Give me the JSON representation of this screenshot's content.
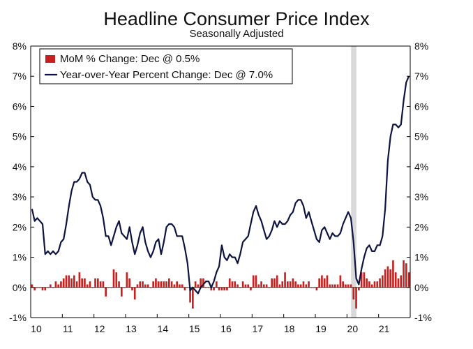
{
  "colors": {
    "bar": "#c8201e",
    "line": "#0d1440",
    "recession": "#d9d9d9",
    "axis": "#000000"
  },
  "chart_data": {
    "type": "bar+line",
    "title": "Headline Consumer Price Index",
    "subtitle": "Seasonally Adjusted",
    "xlabel": "",
    "ylabel": "",
    "ylim": [
      -1,
      8
    ],
    "y_ticks": [
      -1,
      0,
      1,
      2,
      3,
      4,
      5,
      6,
      7,
      8
    ],
    "y_tick_labels_left": [
      "-1%",
      "0%",
      "1%",
      "2%",
      "3%",
      "4%",
      "5%",
      "6%",
      "7%",
      "8%"
    ],
    "y_tick_labels_right": [
      "-1%",
      "0%",
      "1%",
      "2%",
      "3%",
      "4%",
      "5%",
      "6%",
      "7%",
      "8%"
    ],
    "x_range": [
      2010,
      2022
    ],
    "x_ticks": [
      2010,
      2011,
      2012,
      2013,
      2014,
      2015,
      2016,
      2017,
      2018,
      2019,
      2020,
      2021
    ],
    "x_tick_labels": [
      "10",
      "11",
      "12",
      "13",
      "14",
      "15",
      "16",
      "17",
      "18",
      "19",
      "20",
      "21"
    ],
    "recession": {
      "start": 2020.13,
      "end": 2020.3
    },
    "legend": {
      "position": "top-left",
      "entries": [
        {
          "key": "mom",
          "label": "MoM % Change: Dec @ 0.5%"
        },
        {
          "key": "yoy",
          "label": "Year-over-Year Percent Change: Dec @ 7.0%"
        }
      ]
    },
    "series": [
      {
        "name": "MoM % Change",
        "type": "bar",
        "start": "2010-01",
        "values": [
          0.1,
          -0.1,
          0.0,
          0.0,
          -0.1,
          -0.1,
          0.0,
          0.1,
          0.0,
          0.2,
          0.1,
          0.2,
          0.3,
          0.4,
          0.4,
          0.3,
          0.4,
          0.2,
          0.5,
          0.3,
          0.3,
          0.1,
          0.2,
          0.0,
          0.3,
          0.3,
          0.2,
          0.2,
          -0.3,
          0.0,
          0.0,
          0.6,
          0.5,
          0.2,
          -0.3,
          0.0,
          0.5,
          0.3,
          -0.1,
          -0.4,
          0.1,
          0.2,
          0.2,
          0.1,
          0.1,
          0.0,
          0.2,
          0.3,
          0.2,
          0.2,
          0.2,
          0.2,
          0.3,
          0.2,
          0.1,
          0.2,
          0.1,
          0.1,
          -0.1,
          0.0,
          -0.5,
          -0.7,
          0.2,
          0.1,
          0.3,
          0.3,
          0.0,
          0.0,
          -0.1,
          -0.1,
          0.2,
          -0.1,
          -0.1,
          -0.1,
          -0.1,
          0.3,
          0.2,
          0.2,
          0.1,
          0.0,
          0.2,
          0.1,
          0.1,
          -0.1,
          0.4,
          0.4,
          0.1,
          0.2,
          0.1,
          0.1,
          0.0,
          0.3,
          0.3,
          0.4,
          0.1,
          0.2,
          0.5,
          0.2,
          0.2,
          0.3,
          0.2,
          0.1,
          0.1,
          0.2,
          0.1,
          0.2,
          0.0,
          0.0,
          -0.1,
          0.3,
          0.4,
          0.3,
          0.4,
          0.1,
          0.1,
          0.1,
          0.1,
          0.4,
          0.2,
          0.1,
          0.1,
          0.1,
          -0.4,
          -0.7,
          -0.1,
          0.5,
          0.5,
          0.3,
          0.2,
          0.1,
          0.2,
          0.2,
          0.3,
          0.4,
          0.6,
          0.7,
          0.6,
          0.9,
          0.5,
          0.3,
          0.4,
          0.9,
          0.8,
          0.5
        ]
      },
      {
        "name": "Year-over-Year Percent Change",
        "type": "line",
        "start": "2010-01",
        "values": [
          2.6,
          2.2,
          2.3,
          2.2,
          2.1,
          1.1,
          1.2,
          1.1,
          1.2,
          1.1,
          1.2,
          1.5,
          1.6,
          2.1,
          2.7,
          3.2,
          3.5,
          3.5,
          3.6,
          3.8,
          3.8,
          3.5,
          3.4,
          3.0,
          2.9,
          2.9,
          2.7,
          2.3,
          1.7,
          1.7,
          1.4,
          1.7,
          2.0,
          2.2,
          1.8,
          1.7,
          1.6,
          2.0,
          1.5,
          1.1,
          1.4,
          1.8,
          2.0,
          1.5,
          1.2,
          1.0,
          1.2,
          1.5,
          1.6,
          1.1,
          1.5,
          2.0,
          2.1,
          2.1,
          2.0,
          1.7,
          1.7,
          1.7,
          1.3,
          0.8,
          -0.1,
          0.0,
          -0.1,
          -0.2,
          0.0,
          0.1,
          0.2,
          0.2,
          0.0,
          0.2,
          0.5,
          0.7,
          1.4,
          1.0,
          0.9,
          1.1,
          1.0,
          1.0,
          0.8,
          1.1,
          1.5,
          1.6,
          1.7,
          2.1,
          2.5,
          2.7,
          2.4,
          2.2,
          1.9,
          1.6,
          1.7,
          1.9,
          2.2,
          2.0,
          2.2,
          2.1,
          2.1,
          2.2,
          2.4,
          2.5,
          2.8,
          2.9,
          2.9,
          2.7,
          2.3,
          2.5,
          2.2,
          1.9,
          1.6,
          1.5,
          1.9,
          2.0,
          1.8,
          1.6,
          1.8,
          1.7,
          1.7,
          1.8,
          2.1,
          2.3,
          2.5,
          2.3,
          1.5,
          0.3,
          0.1,
          0.6,
          1.0,
          1.3,
          1.4,
          1.2,
          1.2,
          1.4,
          1.4,
          1.7,
          2.6,
          4.2,
          5.0,
          5.4,
          5.4,
          5.3,
          5.4,
          6.2,
          6.8,
          7.0
        ]
      }
    ]
  }
}
